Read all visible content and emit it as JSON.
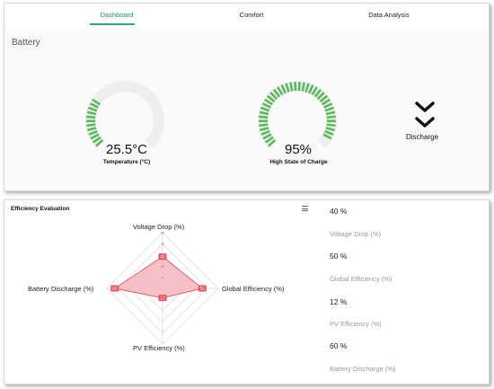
{
  "nav": {
    "tabs": [
      {
        "label": "Dashboard",
        "active": true
      },
      {
        "label": "Comfort",
        "active": false
      },
      {
        "label": "Data Analysis",
        "active": false
      }
    ]
  },
  "battery": {
    "title": "Battery",
    "temperature": {
      "value": "25.5°C",
      "label": "Temperature (°C)",
      "fill_fraction": 0.3
    },
    "charge": {
      "value": "95%",
      "label": "High State of Charge",
      "fill_fraction": 0.95
    },
    "status": {
      "label": "Discharge",
      "icon": "double-chevron-down-icon"
    }
  },
  "efficiency": {
    "title": "Efficiency Evaluation",
    "menu_icon": "hamburger-menu-icon",
    "stats": [
      {
        "value": "40 %",
        "name": "Voltage Drop (%)"
      },
      {
        "value": "50 %",
        "name": "Global Efficiency (%)"
      },
      {
        "value": "12 %",
        "name": "PV Efficiency (%)"
      },
      {
        "value": "60 %",
        "name": "Battery Discharge (%)"
      }
    ]
  },
  "chart_data": {
    "type": "radar",
    "axes": [
      "Voltage Drop (%)",
      "Global Efficiency (%)",
      "PV Efficiency (%)",
      "Battery Discharge (%)"
    ],
    "ticks": [
      "7",
      "21",
      "35",
      "49",
      "63"
    ],
    "series": [
      {
        "values": [
          40,
          50,
          12,
          60
        ],
        "point_labels": [
          "40",
          "50",
          "12",
          "60"
        ]
      }
    ],
    "max": 70,
    "colors": {
      "fill": "#f4b6bd",
      "stroke": "#e0606c",
      "point": "#e8505e"
    }
  },
  "colors": {
    "accent": "#2aa58c",
    "gauge_fill": "#5cb85c",
    "gauge_track": "#eeeeee"
  }
}
